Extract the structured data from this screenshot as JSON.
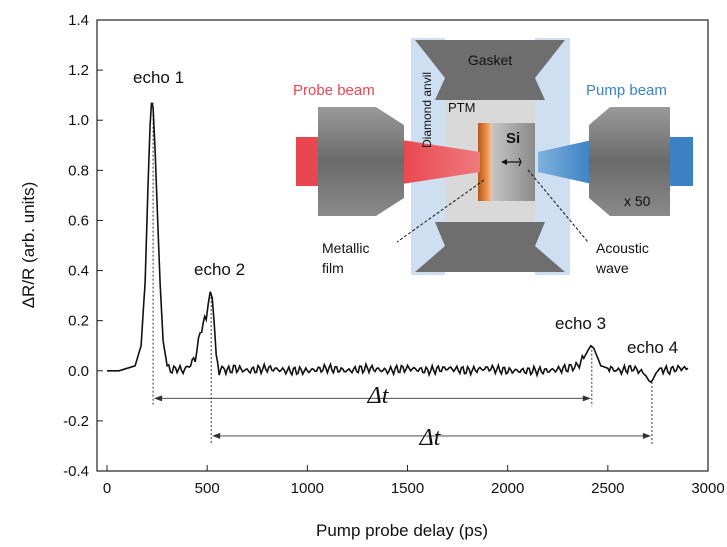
{
  "chart_data": {
    "type": "line",
    "xlabel": "Pump probe delay (ps)",
    "ylabel": "ΔR/R (arb. units)",
    "xlim": [
      -50,
      3000
    ],
    "ylim": [
      -0.4,
      1.4
    ],
    "x_ticks": [
      "0",
      "500",
      "1000",
      "1500",
      "2000",
      "2500",
      "3000"
    ],
    "y_ticks": [
      "-0.4",
      "-0.2",
      "0.0",
      "0.2",
      "0.4",
      "0.6",
      "0.8",
      "1.0",
      "1.2",
      "1.4"
    ],
    "grid": false,
    "series": [
      {
        "x": [
          0,
          60,
          100,
          140,
          170,
          190,
          205,
          215,
          222,
          230,
          240,
          252,
          265,
          280,
          300,
          325,
          350,
          380,
          410,
          440,
          465,
          480,
          495,
          505,
          515,
          525,
          535,
          545,
          560,
          580,
          600,
          640,
          700,
          800,
          900,
          1000,
          1100,
          1200,
          1300,
          1400,
          1500,
          1600,
          1700,
          1800,
          1900,
          2000,
          2100,
          2200,
          2300,
          2350,
          2380,
          2400,
          2415,
          2430,
          2445,
          2465,
          2500,
          2560,
          2620,
          2660,
          2690,
          2705,
          2715,
          2725,
          2740,
          2760,
          2800,
          2850,
          2900
        ],
        "y": [
          0.0,
          0.0,
          0.01,
          0.02,
          0.1,
          0.35,
          0.75,
          0.98,
          1.07,
          1.05,
          0.88,
          0.62,
          0.35,
          0.12,
          0.02,
          0.0,
          0.01,
          0.0,
          0.02,
          0.05,
          0.15,
          0.19,
          0.21,
          0.28,
          0.31,
          0.3,
          0.2,
          0.05,
          0.0,
          0.01,
          0.0,
          0.01,
          0.0,
          0.01,
          0.0,
          0.0,
          0.01,
          0.0,
          0.01,
          0.0,
          0.01,
          0.0,
          0.01,
          0.0,
          0.01,
          0.0,
          0.0,
          0.0,
          0.01,
          0.02,
          0.05,
          0.08,
          0.1,
          0.09,
          0.06,
          0.02,
          0.01,
          0.0,
          0.01,
          0.0,
          -0.02,
          -0.04,
          -0.045,
          -0.035,
          -0.01,
          0.01,
          0.0,
          0.01,
          0.01
        ]
      }
    ],
    "annotations": [
      {
        "text": "echo 1",
        "x": 230,
        "y": 1.07
      },
      {
        "text": "echo 2",
        "x": 520,
        "y": 0.31
      },
      {
        "text": "echo 3",
        "x": 2420,
        "y": 0.1
      },
      {
        "text": "echo 4",
        "x": 2720,
        "y": -0.045
      }
    ],
    "intervals": [
      {
        "label": "Δt",
        "x_start": 230,
        "x_end": 2420,
        "y": -0.11
      },
      {
        "label": "Δt",
        "x_start": 520,
        "x_end": 2720,
        "y": -0.26
      }
    ],
    "inset": {
      "labels": [
        "Gasket",
        "Probe beam",
        "Pump beam",
        "Diamond anvil",
        "PTM",
        "Si",
        "x 50",
        "Metallic",
        "film",
        "Acoustic",
        "wave"
      ],
      "colors": {
        "probe_beam": "#e8474f",
        "pump_beam": "#3b82c4",
        "metallic_film": "#d97a2b",
        "anvil": "#c9dcf0",
        "gasket": "#6e6e6e"
      }
    }
  }
}
